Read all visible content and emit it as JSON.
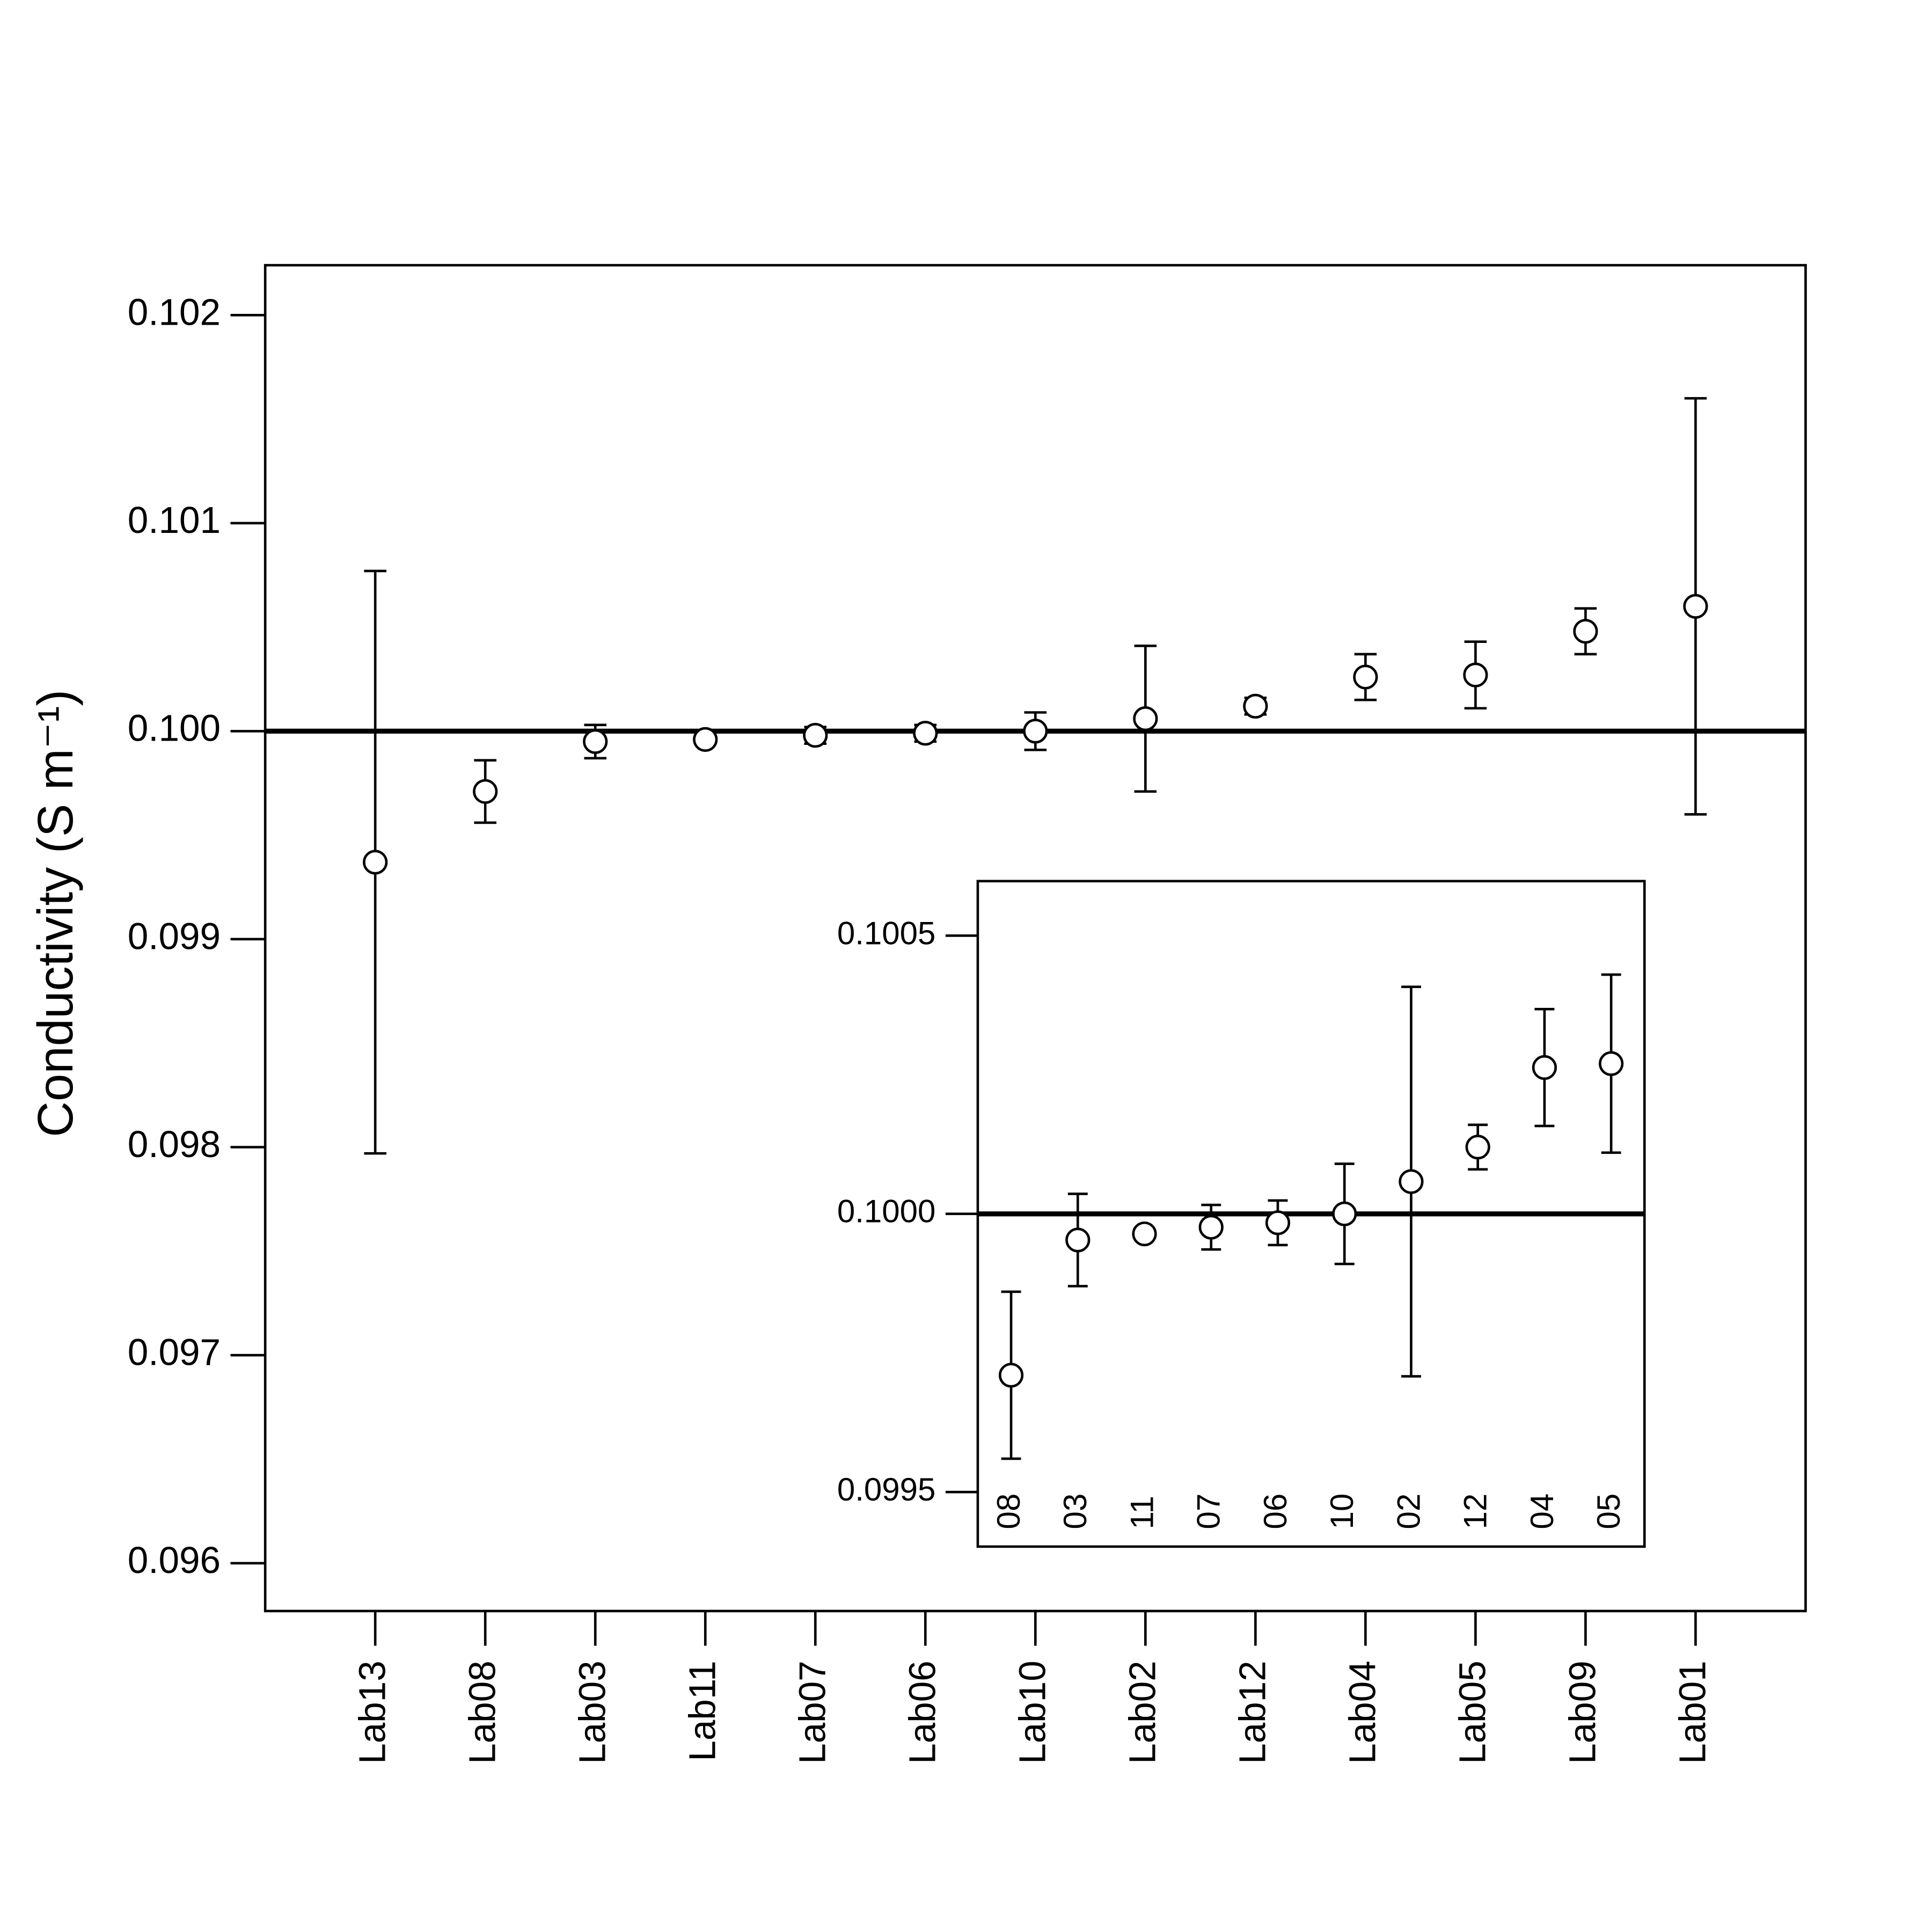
{
  "chart_data": [
    {
      "type": "errorbar",
      "y_label": "Conductivity  (S m⁻¹)",
      "categories": [
        "Lab13",
        "Lab08",
        "Lab03",
        "Lab11",
        "Lab07",
        "Lab06",
        "Lab10",
        "Lab02",
        "Lab12",
        "Lab04",
        "Lab05",
        "Lab09",
        "Lab01"
      ],
      "values": [
        0.09937,
        0.09971,
        0.09995,
        0.09996,
        0.09998,
        0.09999,
        0.1,
        0.10006,
        0.10012,
        0.10026,
        0.10027,
        0.10048,
        0.1006
      ],
      "errors": [
        0.0014,
        0.00015,
        8e-05,
        1e-05,
        4e-05,
        4e-05,
        9e-05,
        0.00035,
        4e-05,
        0.00011,
        0.00016,
        0.00011,
        0.001
      ],
      "reference": 0.1,
      "ylim": [
        0.09577,
        0.10224
      ],
      "yticks": [
        0.096,
        0.097,
        0.098,
        0.099,
        {
          "value": 0.1,
          "label": "0.100"
        },
        0.101,
        0.102
      ]
    },
    {
      "type": "errorbar",
      "categories": [
        "08",
        "03",
        "11",
        "07",
        "06",
        "10",
        "02",
        "12",
        "04",
        "05"
      ],
      "values": [
        0.09971,
        0.099953,
        0.099964,
        0.099976,
        0.099984,
        0.1,
        0.100058,
        0.10012,
        0.100263,
        0.10027
      ],
      "errors": [
        0.00015,
        8.3e-05,
        1e-05,
        4e-05,
        4e-05,
        9e-05,
        0.00035,
        4e-05,
        0.000105,
        0.00016
      ],
      "reference": 0.1,
      "ylim": [
        0.099402,
        0.100598
      ],
      "yticks": [
        0.0995,
        {
          "value": 0.1,
          "label": "0.1000"
        },
        0.1005
      ]
    }
  ]
}
